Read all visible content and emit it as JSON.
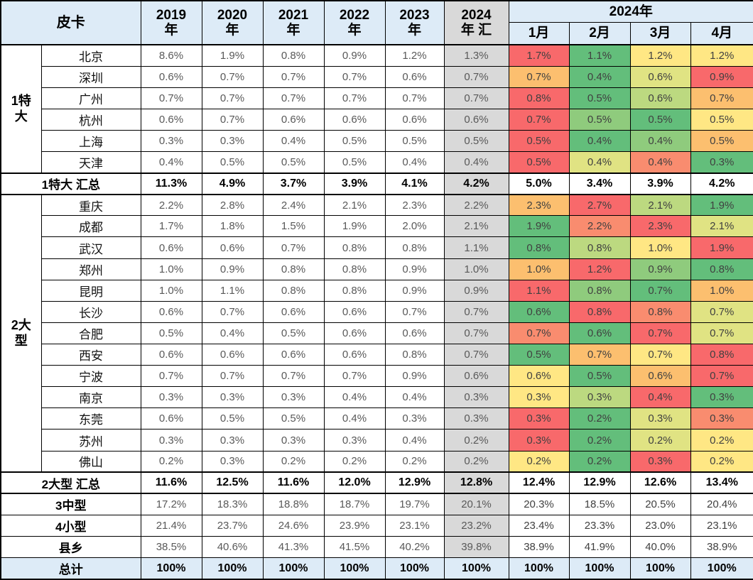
{
  "palette": {
    "r": "#F8696B",
    "s": "#F98C6F",
    "o": "#FCBF6F",
    "y": "#FFE784",
    "yg": "#E0E383",
    "lg": "#8FCB7D",
    "lg2": "#BCD980",
    "g": "#63BE7B",
    "w": "#FFFFFF",
    "header_blue": "#DDEBF7",
    "ytd_gray": "#D9D9D9",
    "total_blue": "#DDEBF7"
  },
  "chart_data": {
    "type": "table",
    "corner_label": "皮卡",
    "year_columns": [
      {
        "top": "2019",
        "bottom": "年"
      },
      {
        "top": "2020",
        "bottom": "年"
      },
      {
        "top": "2021",
        "bottom": "年"
      },
      {
        "top": "2022",
        "bottom": "年"
      },
      {
        "top": "2023",
        "bottom": "年"
      },
      {
        "top": "2024",
        "bottom": "年 汇"
      }
    ],
    "month_group_label": "2024年",
    "month_columns": [
      "1月",
      "2月",
      "3月",
      "4月"
    ],
    "groups": [
      {
        "label": "1特大",
        "rows": 6
      },
      {
        "label": "2大型",
        "rows": 13
      }
    ],
    "rows": [
      {
        "kind": "city",
        "group_start": 0,
        "thick_top": true,
        "label": "北京",
        "years": [
          "8.6%",
          "1.9%",
          "0.8%",
          "0.9%",
          "1.2%",
          "1.3%"
        ],
        "months": [
          [
            "1.7%",
            "r"
          ],
          [
            "1.1%",
            "g"
          ],
          [
            "1.2%",
            "y"
          ],
          [
            "1.2%",
            "y"
          ]
        ]
      },
      {
        "kind": "city",
        "label": "深圳",
        "years": [
          "0.6%",
          "0.7%",
          "0.7%",
          "0.7%",
          "0.6%",
          "0.7%"
        ],
        "months": [
          [
            "0.7%",
            "o"
          ],
          [
            "0.4%",
            "g"
          ],
          [
            "0.6%",
            "yg"
          ],
          [
            "0.9%",
            "r"
          ]
        ]
      },
      {
        "kind": "city",
        "label": "广州",
        "years": [
          "0.7%",
          "0.7%",
          "0.7%",
          "0.7%",
          "0.7%",
          "0.7%"
        ],
        "months": [
          [
            "0.8%",
            "r"
          ],
          [
            "0.5%",
            "g"
          ],
          [
            "0.6%",
            "lg2"
          ],
          [
            "0.7%",
            "o"
          ]
        ]
      },
      {
        "kind": "city",
        "label": "杭州",
        "years": [
          "0.6%",
          "0.7%",
          "0.6%",
          "0.6%",
          "0.6%",
          "0.6%"
        ],
        "months": [
          [
            "0.7%",
            "r"
          ],
          [
            "0.5%",
            "lg"
          ],
          [
            "0.5%",
            "g"
          ],
          [
            "0.5%",
            "y"
          ]
        ]
      },
      {
        "kind": "city",
        "label": "上海",
        "years": [
          "0.3%",
          "0.3%",
          "0.4%",
          "0.5%",
          "0.5%",
          "0.5%"
        ],
        "months": [
          [
            "0.5%",
            "r"
          ],
          [
            "0.4%",
            "g"
          ],
          [
            "0.4%",
            "lg"
          ],
          [
            "0.5%",
            "o"
          ]
        ]
      },
      {
        "kind": "city",
        "label": "天津",
        "years": [
          "0.4%",
          "0.5%",
          "0.5%",
          "0.5%",
          "0.4%",
          "0.4%"
        ],
        "months": [
          [
            "0.5%",
            "r"
          ],
          [
            "0.4%",
            "yg"
          ],
          [
            "0.4%",
            "s"
          ],
          [
            "0.3%",
            "g"
          ]
        ]
      },
      {
        "kind": "summary",
        "thick_top": true,
        "label": "1特大 汇总",
        "years": [
          "11.3%",
          "4.9%",
          "3.7%",
          "3.9%",
          "4.1%",
          "4.2%"
        ],
        "months": [
          [
            "5.0%",
            "w"
          ],
          [
            "3.4%",
            "w"
          ],
          [
            "3.9%",
            "w"
          ],
          [
            "4.2%",
            "w"
          ]
        ]
      },
      {
        "kind": "city",
        "group_start": 1,
        "thick_top": true,
        "label": "重庆",
        "years": [
          "2.2%",
          "2.8%",
          "2.4%",
          "2.1%",
          "2.3%",
          "2.2%"
        ],
        "months": [
          [
            "2.3%",
            "o"
          ],
          [
            "2.7%",
            "r"
          ],
          [
            "2.1%",
            "lg2"
          ],
          [
            "1.9%",
            "g"
          ]
        ]
      },
      {
        "kind": "city",
        "label": "成都",
        "years": [
          "1.7%",
          "1.8%",
          "1.5%",
          "1.9%",
          "2.0%",
          "2.1%"
        ],
        "months": [
          [
            "1.9%",
            "g"
          ],
          [
            "2.2%",
            "s"
          ],
          [
            "2.3%",
            "r"
          ],
          [
            "2.1%",
            "yg"
          ]
        ]
      },
      {
        "kind": "city",
        "label": "武汉",
        "years": [
          "0.6%",
          "0.6%",
          "0.7%",
          "0.8%",
          "0.8%",
          "1.1%"
        ],
        "months": [
          [
            "0.8%",
            "g"
          ],
          [
            "0.8%",
            "lg2"
          ],
          [
            "1.0%",
            "y"
          ],
          [
            "1.9%",
            "r"
          ]
        ]
      },
      {
        "kind": "city",
        "label": "郑州",
        "years": [
          "1.0%",
          "0.9%",
          "0.8%",
          "0.8%",
          "0.9%",
          "1.0%"
        ],
        "months": [
          [
            "1.0%",
            "o"
          ],
          [
            "1.2%",
            "r"
          ],
          [
            "0.9%",
            "lg"
          ],
          [
            "0.8%",
            "g"
          ]
        ]
      },
      {
        "kind": "city",
        "label": "昆明",
        "years": [
          "1.0%",
          "1.1%",
          "0.8%",
          "0.8%",
          "0.9%",
          "0.9%"
        ],
        "months": [
          [
            "1.1%",
            "r"
          ],
          [
            "0.8%",
            "lg"
          ],
          [
            "0.7%",
            "g"
          ],
          [
            "1.0%",
            "o"
          ]
        ]
      },
      {
        "kind": "city",
        "label": "长沙",
        "years": [
          "0.6%",
          "0.7%",
          "0.6%",
          "0.6%",
          "0.7%",
          "0.7%"
        ],
        "months": [
          [
            "0.6%",
            "g"
          ],
          [
            "0.8%",
            "r"
          ],
          [
            "0.8%",
            "s"
          ],
          [
            "0.7%",
            "yg"
          ]
        ]
      },
      {
        "kind": "city",
        "label": "合肥",
        "years": [
          "0.5%",
          "0.4%",
          "0.5%",
          "0.6%",
          "0.6%",
          "0.7%"
        ],
        "months": [
          [
            "0.7%",
            "s"
          ],
          [
            "0.6%",
            "g"
          ],
          [
            "0.7%",
            "r"
          ],
          [
            "0.7%",
            "yg"
          ]
        ]
      },
      {
        "kind": "city",
        "label": "西安",
        "years": [
          "0.6%",
          "0.6%",
          "0.6%",
          "0.6%",
          "0.8%",
          "0.7%"
        ],
        "months": [
          [
            "0.5%",
            "g"
          ],
          [
            "0.7%",
            "o"
          ],
          [
            "0.7%",
            "y"
          ],
          [
            "0.8%",
            "r"
          ]
        ]
      },
      {
        "kind": "city",
        "label": "宁波",
        "years": [
          "0.7%",
          "0.7%",
          "0.7%",
          "0.7%",
          "0.9%",
          "0.6%"
        ],
        "months": [
          [
            "0.6%",
            "y"
          ],
          [
            "0.5%",
            "g"
          ],
          [
            "0.6%",
            "o"
          ],
          [
            "0.7%",
            "r"
          ]
        ]
      },
      {
        "kind": "city",
        "label": "南京",
        "years": [
          "0.3%",
          "0.3%",
          "0.3%",
          "0.4%",
          "0.4%",
          "0.3%"
        ],
        "months": [
          [
            "0.3%",
            "y"
          ],
          [
            "0.3%",
            "lg2"
          ],
          [
            "0.4%",
            "r"
          ],
          [
            "0.3%",
            "g"
          ]
        ]
      },
      {
        "kind": "city",
        "label": "东莞",
        "years": [
          "0.6%",
          "0.5%",
          "0.5%",
          "0.4%",
          "0.3%",
          "0.3%"
        ],
        "months": [
          [
            "0.3%",
            "r"
          ],
          [
            "0.2%",
            "g"
          ],
          [
            "0.3%",
            "yg"
          ],
          [
            "0.3%",
            "s"
          ]
        ]
      },
      {
        "kind": "city",
        "label": "苏州",
        "years": [
          "0.3%",
          "0.3%",
          "0.3%",
          "0.3%",
          "0.4%",
          "0.2%"
        ],
        "months": [
          [
            "0.3%",
            "r"
          ],
          [
            "0.2%",
            "g"
          ],
          [
            "0.2%",
            "yg"
          ],
          [
            "0.2%",
            "y"
          ]
        ]
      },
      {
        "kind": "city",
        "label": "佛山",
        "years": [
          "0.2%",
          "0.3%",
          "0.2%",
          "0.2%",
          "0.2%",
          "0.2%"
        ],
        "months": [
          [
            "0.2%",
            "y"
          ],
          [
            "0.2%",
            "g"
          ],
          [
            "0.3%",
            "r"
          ],
          [
            "0.2%",
            "y"
          ]
        ]
      },
      {
        "kind": "summary",
        "thick_top": true,
        "label": "2大型 汇总",
        "years": [
          "11.6%",
          "12.5%",
          "11.6%",
          "12.0%",
          "12.9%",
          "12.8%"
        ],
        "months": [
          [
            "12.4%",
            "w"
          ],
          [
            "12.9%",
            "w"
          ],
          [
            "12.6%",
            "w"
          ],
          [
            "13.4%",
            "w"
          ]
        ]
      },
      {
        "kind": "section",
        "thick_top": true,
        "label": "3中型",
        "years": [
          "17.2%",
          "18.3%",
          "18.8%",
          "18.7%",
          "19.7%",
          "20.1%"
        ],
        "months": [
          [
            "20.3%",
            "w"
          ],
          [
            "18.5%",
            "w"
          ],
          [
            "20.5%",
            "w"
          ],
          [
            "20.4%",
            "w"
          ]
        ]
      },
      {
        "kind": "section",
        "label": "4小型",
        "years": [
          "21.4%",
          "23.7%",
          "24.6%",
          "23.9%",
          "23.1%",
          "23.2%"
        ],
        "months": [
          [
            "23.4%",
            "w"
          ],
          [
            "23.3%",
            "w"
          ],
          [
            "23.0%",
            "w"
          ],
          [
            "23.1%",
            "w"
          ]
        ]
      },
      {
        "kind": "section",
        "label": "县乡",
        "years": [
          "38.5%",
          "40.6%",
          "41.3%",
          "41.5%",
          "40.2%",
          "39.8%"
        ],
        "months": [
          [
            "38.9%",
            "w"
          ],
          [
            "41.9%",
            "w"
          ],
          [
            "40.0%",
            "w"
          ],
          [
            "38.9%",
            "w"
          ]
        ]
      },
      {
        "kind": "total",
        "label": "总计",
        "years": [
          "100%",
          "100%",
          "100%",
          "100%",
          "100%",
          "100%"
        ],
        "months": [
          [
            "100%",
            "t"
          ],
          [
            "100%",
            "t"
          ],
          [
            "100%",
            "t"
          ],
          [
            "100%",
            "t"
          ]
        ]
      }
    ]
  }
}
